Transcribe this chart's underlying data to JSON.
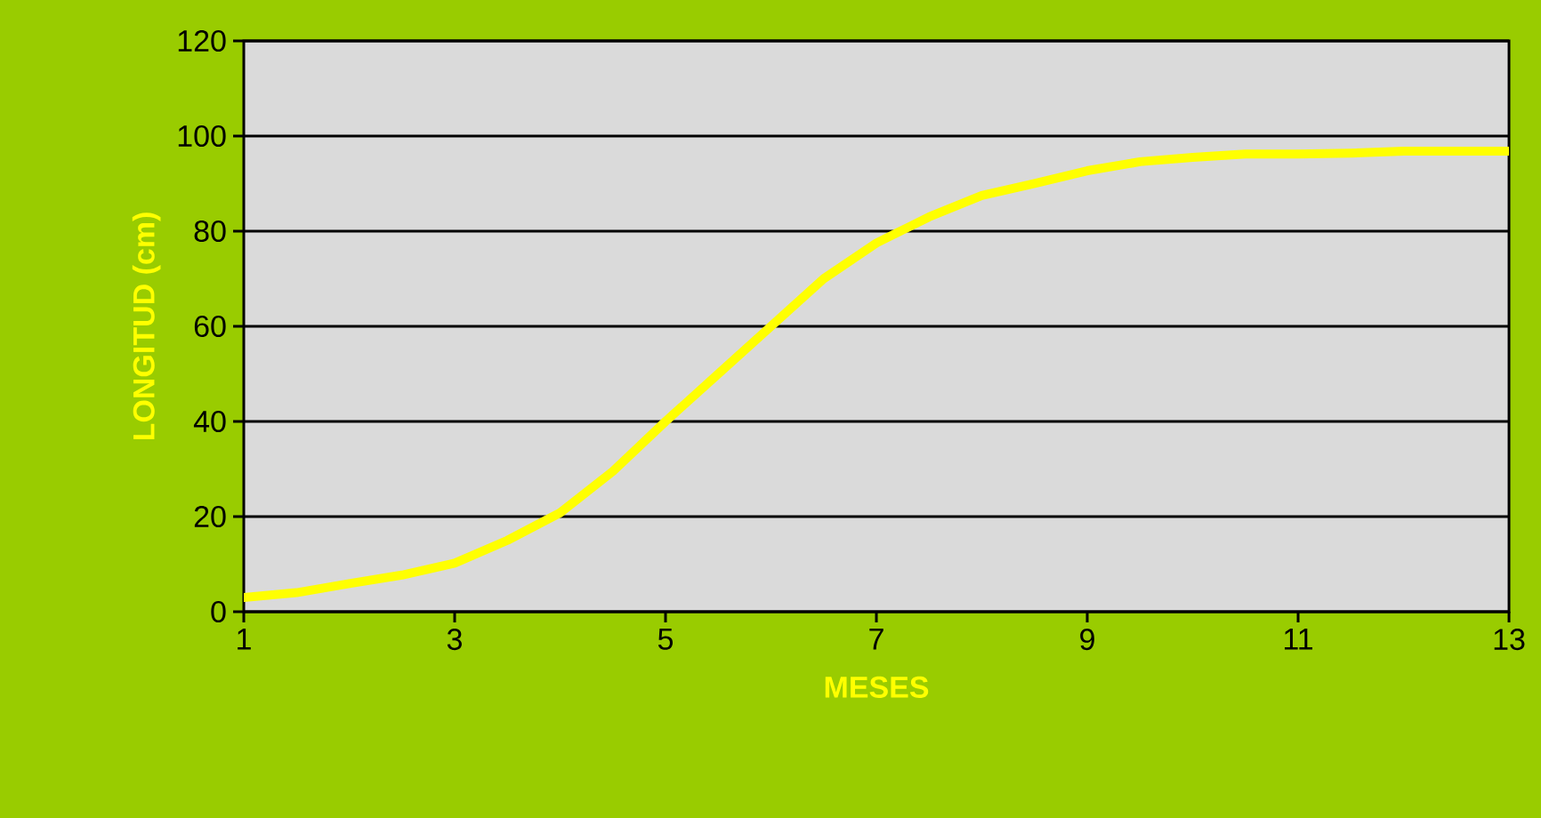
{
  "chart_data": {
    "type": "line",
    "xlabel": "MESES",
    "ylabel": "LONGITUD (cm)",
    "x": [
      1,
      1.5,
      2,
      2.5,
      3,
      3.5,
      4,
      4.5,
      5,
      5.5,
      6,
      6.5,
      7,
      7.5,
      8,
      8.5,
      9,
      9.5,
      10,
      10.5,
      11,
      11.5,
      12,
      12.5,
      13
    ],
    "series": [
      {
        "color": "#ffff00",
        "values": [
          3,
          4,
          5.9,
          7.7,
          10.2,
          15,
          20.8,
          29.5,
          40,
          50,
          60,
          70,
          77.5,
          83,
          87.5,
          90,
          92.7,
          94.6,
          95.5,
          96.2,
          96.2,
          96.4,
          96.8,
          96.8,
          96.8
        ]
      }
    ],
    "xlim": [
      1,
      13
    ],
    "ylim": [
      0,
      120
    ],
    "xticks": [
      1,
      3,
      5,
      7,
      9,
      11,
      13
    ],
    "yticks": [
      0,
      20,
      40,
      60,
      80,
      100,
      120
    ],
    "grid": "y"
  }
}
